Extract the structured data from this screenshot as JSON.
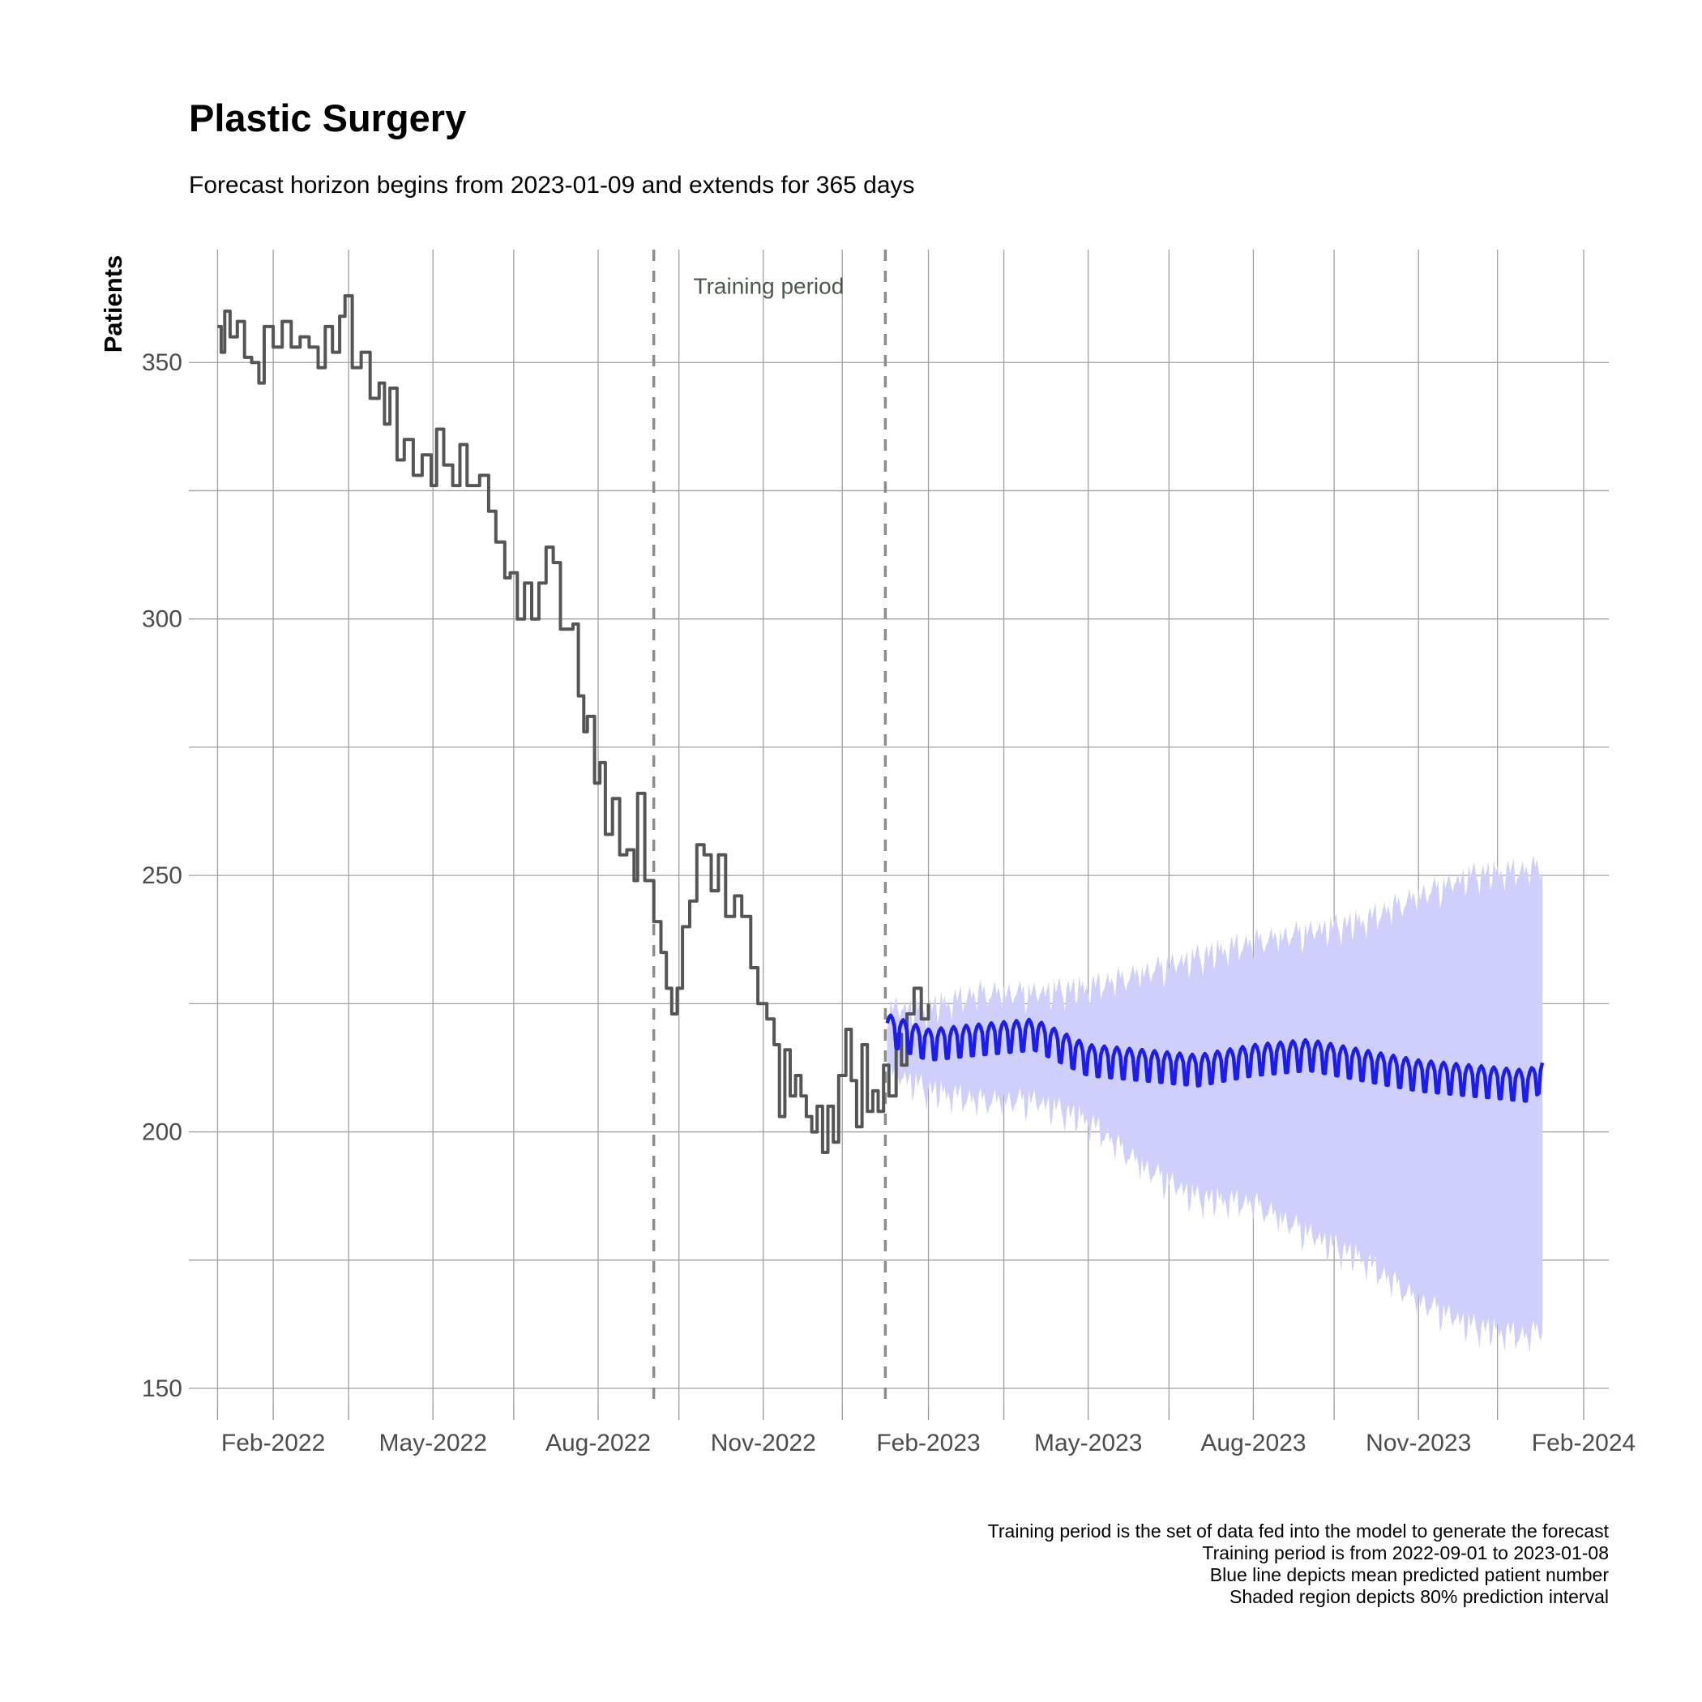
{
  "chart_data": {
    "type": "line",
    "title": "Plastic Surgery",
    "subtitle": "Forecast horizon begins from 2023-01-09 and extends for 365 days",
    "xlabel": "",
    "ylabel": "Patients",
    "x_type": "date",
    "xlim": [
      "2021-12-16",
      "2024-02-15"
    ],
    "ylim": [
      147,
      372
    ],
    "x_ticks": [
      {
        "date": "2022-02-01",
        "label": "Feb-2022"
      },
      {
        "date": "2022-05-01",
        "label": "May-2022"
      },
      {
        "date": "2022-08-01",
        "label": "Aug-2022"
      },
      {
        "date": "2022-11-01",
        "label": "Nov-2022"
      },
      {
        "date": "2023-02-01",
        "label": "Feb-2023"
      },
      {
        "date": "2023-05-01",
        "label": "May-2023"
      },
      {
        "date": "2023-08-01",
        "label": "Aug-2023"
      },
      {
        "date": "2023-11-01",
        "label": "Nov-2023"
      },
      {
        "date": "2024-02-01",
        "label": "Feb-2024"
      }
    ],
    "x_minor_ticks": [
      "2022-01-01",
      "2022-03-15",
      "2022-06-15",
      "2022-09-15",
      "2022-12-15",
      "2023-03-15",
      "2023-06-15",
      "2023-09-15",
      "2023-12-15"
    ],
    "y_ticks": [
      {
        "value": 150,
        "label": "150"
      },
      {
        "value": 200,
        "label": "200"
      },
      {
        "value": 250,
        "label": "250"
      },
      {
        "value": 300,
        "label": "300"
      },
      {
        "value": 350,
        "label": "350"
      }
    ],
    "y_minor_ticks": [
      175,
      225,
      275,
      325
    ],
    "grid": true,
    "vertical_lines": [
      {
        "date": "2022-09-01",
        "style": "dashed"
      },
      {
        "date": "2023-01-08",
        "style": "dashed"
      }
    ],
    "annotations": [
      {
        "text": "Training period",
        "date": "2022-11-04",
        "value": 365
      }
    ],
    "series": [
      {
        "style": "step",
        "color": "#555555",
        "points": [
          [
            "2022-01-01",
            357
          ],
          [
            "2022-01-03",
            352
          ],
          [
            "2022-01-05",
            360
          ],
          [
            "2022-01-08",
            355
          ],
          [
            "2022-01-12",
            358
          ],
          [
            "2022-01-16",
            351
          ],
          [
            "2022-01-20",
            350
          ],
          [
            "2022-01-24",
            346
          ],
          [
            "2022-01-27",
            357
          ],
          [
            "2022-02-01",
            353
          ],
          [
            "2022-02-06",
            358
          ],
          [
            "2022-02-11",
            353
          ],
          [
            "2022-02-16",
            355
          ],
          [
            "2022-02-21",
            353
          ],
          [
            "2022-02-26",
            349
          ],
          [
            "2022-03-02",
            357
          ],
          [
            "2022-03-06",
            352
          ],
          [
            "2022-03-10",
            359
          ],
          [
            "2022-03-13",
            363
          ],
          [
            "2022-03-17",
            349
          ],
          [
            "2022-03-22",
            352
          ],
          [
            "2022-03-27",
            343
          ],
          [
            "2022-04-01",
            346
          ],
          [
            "2022-04-04",
            338
          ],
          [
            "2022-04-07",
            345
          ],
          [
            "2022-04-11",
            331
          ],
          [
            "2022-04-15",
            335
          ],
          [
            "2022-04-20",
            328
          ],
          [
            "2022-04-25",
            332
          ],
          [
            "2022-04-30",
            326
          ],
          [
            "2022-05-03",
            337
          ],
          [
            "2022-05-07",
            330
          ],
          [
            "2022-05-12",
            326
          ],
          [
            "2022-05-16",
            334
          ],
          [
            "2022-05-20",
            326
          ],
          [
            "2022-05-27",
            328
          ],
          [
            "2022-06-01",
            321
          ],
          [
            "2022-06-05",
            315
          ],
          [
            "2022-06-10",
            308
          ],
          [
            "2022-06-13",
            309
          ],
          [
            "2022-06-17",
            300
          ],
          [
            "2022-06-21",
            307
          ],
          [
            "2022-06-25",
            300
          ],
          [
            "2022-06-29",
            307
          ],
          [
            "2022-07-03",
            314
          ],
          [
            "2022-07-07",
            311
          ],
          [
            "2022-07-11",
            298
          ],
          [
            "2022-07-18",
            299
          ],
          [
            "2022-07-21",
            285
          ],
          [
            "2022-07-24",
            278
          ],
          [
            "2022-07-26",
            281
          ],
          [
            "2022-07-30",
            268
          ],
          [
            "2022-08-02",
            272
          ],
          [
            "2022-08-05",
            258
          ],
          [
            "2022-08-09",
            265
          ],
          [
            "2022-08-13",
            254
          ],
          [
            "2022-08-17",
            255
          ],
          [
            "2022-08-21",
            249
          ],
          [
            "2022-08-23",
            266
          ],
          [
            "2022-08-27",
            249
          ],
          [
            "2022-09-01",
            241
          ],
          [
            "2022-09-05",
            235
          ],
          [
            "2022-09-08",
            228
          ],
          [
            "2022-09-11",
            223
          ],
          [
            "2022-09-14",
            228
          ],
          [
            "2022-09-17",
            240
          ],
          [
            "2022-09-21",
            245
          ],
          [
            "2022-09-25",
            256
          ],
          [
            "2022-09-29",
            254
          ],
          [
            "2022-10-03",
            247
          ],
          [
            "2022-10-07",
            254
          ],
          [
            "2022-10-11",
            242
          ],
          [
            "2022-10-16",
            246
          ],
          [
            "2022-10-20",
            242
          ],
          [
            "2022-10-25",
            232
          ],
          [
            "2022-10-29",
            225
          ],
          [
            "2022-11-03",
            222
          ],
          [
            "2022-11-07",
            217
          ],
          [
            "2022-11-10",
            203
          ],
          [
            "2022-11-13",
            216
          ],
          [
            "2022-11-16",
            207
          ],
          [
            "2022-11-19",
            211
          ],
          [
            "2022-11-22",
            207
          ],
          [
            "2022-11-25",
            203
          ],
          [
            "2022-11-28",
            200
          ],
          [
            "2022-12-01",
            205
          ],
          [
            "2022-12-04",
            196
          ],
          [
            "2022-12-07",
            205
          ],
          [
            "2022-12-10",
            198
          ],
          [
            "2022-12-13",
            211
          ],
          [
            "2022-12-17",
            220
          ],
          [
            "2022-12-20",
            210
          ],
          [
            "2022-12-23",
            201
          ],
          [
            "2022-12-26",
            217
          ],
          [
            "2022-12-29",
            204
          ],
          [
            "2023-01-01",
            208
          ],
          [
            "2023-01-04",
            204
          ],
          [
            "2023-01-07",
            213
          ],
          [
            "2023-01-10",
            207
          ],
          [
            "2023-01-14",
            219
          ],
          [
            "2023-01-17",
            213
          ],
          [
            "2023-01-20",
            223
          ],
          [
            "2023-01-24",
            228
          ],
          [
            "2023-01-28",
            222
          ],
          [
            "2023-02-01",
            225
          ]
        ]
      },
      {
        "name": "mean predicted",
        "style": "line",
        "color": "#1c1cf2",
        "points": [
          [
            "2023-01-09",
            220
          ],
          [
            "2023-02-01",
            217
          ],
          [
            "2023-03-01",
            218
          ],
          [
            "2023-04-01",
            219
          ],
          [
            "2023-05-01",
            214
          ],
          [
            "2023-06-01",
            213
          ],
          [
            "2023-07-01",
            212
          ],
          [
            "2023-08-01",
            214
          ],
          [
            "2023-09-01",
            215
          ],
          [
            "2023-10-01",
            213
          ],
          [
            "2023-11-01",
            211
          ],
          [
            "2023-12-01",
            210
          ],
          [
            "2024-01-01",
            209
          ],
          [
            "2024-01-09",
            211
          ]
        ],
        "weekly_amplitude": 3
      },
      {
        "name": "80% prediction interval",
        "style": "band",
        "color": "#cfcffb",
        "points": [
          [
            "2023-01-09",
            213,
            225
          ],
          [
            "2023-02-01",
            209,
            225
          ],
          [
            "2023-03-01",
            207,
            228
          ],
          [
            "2023-04-01",
            207,
            228
          ],
          [
            "2023-05-01",
            203,
            229
          ],
          [
            "2023-06-01",
            194,
            232
          ],
          [
            "2023-07-01",
            188,
            235
          ],
          [
            "2023-08-01",
            187,
            238
          ],
          [
            "2023-09-01",
            181,
            240
          ],
          [
            "2023-10-01",
            176,
            242
          ],
          [
            "2023-11-01",
            168,
            247
          ],
          [
            "2023-12-01",
            163,
            251
          ],
          [
            "2024-01-01",
            161,
            252
          ],
          [
            "2024-01-09",
            163,
            253
          ]
        ]
      }
    ],
    "legend": "none",
    "caption": [
      "Training period is the set of data fed into the model to generate the forecast",
      "Training period is from 2022-09-01 to 2023-01-08",
      "Blue line depicts mean predicted patient number",
      "Shaded region depicts 80% prediction interval"
    ]
  }
}
